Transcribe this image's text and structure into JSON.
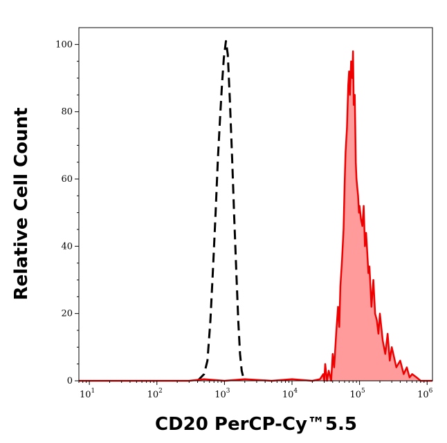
{
  "chart_data": {
    "type": "area",
    "xlabel": "CD20 PerCP-Cy™5.5",
    "ylabel": "Relative Cell Count",
    "x_scale": "log",
    "xlim": [
      7,
      1200000
    ],
    "ylim": [
      0,
      105
    ],
    "x_ticks": [
      {
        "value": 10,
        "base": "10",
        "exp": "1"
      },
      {
        "value": 100,
        "base": "10",
        "exp": "2"
      },
      {
        "value": 1000,
        "base": "10",
        "exp": "3"
      },
      {
        "value": 10000,
        "base": "10",
        "exp": "4"
      },
      {
        "value": 100000,
        "base": "10",
        "exp": "5"
      },
      {
        "value": 1000000,
        "base": "10",
        "exp": "6"
      }
    ],
    "y_ticks": [
      {
        "value": 0,
        "label": "0"
      },
      {
        "value": 20,
        "label": "20"
      },
      {
        "value": 40,
        "label": "40"
      },
      {
        "value": 60,
        "label": "60"
      },
      {
        "value": 80,
        "label": "80"
      },
      {
        "value": 100,
        "label": "100"
      }
    ],
    "grid": false,
    "series": [
      {
        "style": "dashed",
        "color": "#000000",
        "fill": "none",
        "x": [
          400,
          500,
          560,
          620,
          680,
          740,
          800,
          860,
          920,
          980,
          1050,
          1120,
          1200,
          1300,
          1400,
          1500,
          1600,
          1700,
          1800,
          1900,
          2000
        ],
        "y": [
          0,
          2,
          6,
          18,
          34,
          50,
          66,
          78,
          88,
          96,
          101,
          97,
          84,
          66,
          48,
          32,
          18,
          8,
          3,
          1,
          0
        ]
      },
      {
        "style": "solid",
        "color": "#ee0000",
        "fill": "#ff9b9b",
        "x": [
          7,
          300,
          500,
          1000,
          2000,
          5000,
          10000,
          20000,
          26000,
          29000,
          30000,
          31000,
          33000,
          35000,
          38000,
          40000,
          42000,
          45000,
          48000,
          50000,
          52000,
          55000,
          58000,
          60000,
          62000,
          65000,
          68000,
          70000,
          72000,
          75000,
          78000,
          80000,
          82000,
          85000,
          88000,
          90000,
          92000,
          95000,
          98000,
          100000,
          105000,
          110000,
          115000,
          120000,
          125000,
          130000,
          135000,
          140000,
          145000,
          150000,
          160000,
          170000,
          180000,
          190000,
          200000,
          220000,
          240000,
          260000,
          280000,
          300000,
          350000,
          400000,
          450000,
          500000,
          550000,
          600000,
          700000,
          800000,
          1000000,
          1200000
        ],
        "y": [
          0,
          0,
          0.5,
          0,
          0.5,
          0,
          0.5,
          0,
          0.5,
          2,
          0,
          5,
          0,
          3,
          0,
          8,
          4,
          14,
          22,
          16,
          28,
          36,
          45,
          58,
          68,
          75,
          88,
          92,
          85,
          95,
          90,
          98,
          82,
          85,
          65,
          60,
          58,
          55,
          50,
          52,
          48,
          46,
          52,
          40,
          44,
          38,
          32,
          34,
          28,
          22,
          30,
          20,
          18,
          14,
          20,
          12,
          8,
          14,
          6,
          10,
          4,
          6,
          2,
          4,
          1,
          2,
          1,
          0,
          0,
          0
        ]
      }
    ]
  }
}
